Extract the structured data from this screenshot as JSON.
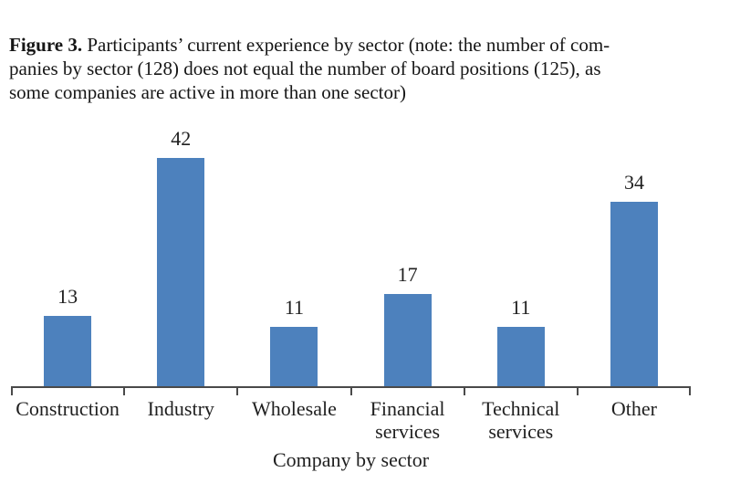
{
  "figure": {
    "label": "Figure 3.",
    "caption_lines": [
      "Participants’ current experience by sector (note: the number of com-",
      "panies by sector (128) does not equal the number of board positions (125), as",
      "some companies are active in more than one sector)"
    ]
  },
  "chart_data": {
    "type": "bar",
    "categories": [
      "Construction",
      "Industry",
      "Wholesale",
      "Financial services",
      "Technical services",
      "Other"
    ],
    "values": [
      13,
      42,
      11,
      17,
      11,
      34
    ],
    "title": "",
    "xlabel": "Company by sector",
    "ylabel": "",
    "ylim": [
      0,
      45
    ],
    "grid": false,
    "legend": "none",
    "value_labels_shown": true,
    "bar_color": "#4d81bd",
    "axis_color": "#4a4a4a"
  }
}
